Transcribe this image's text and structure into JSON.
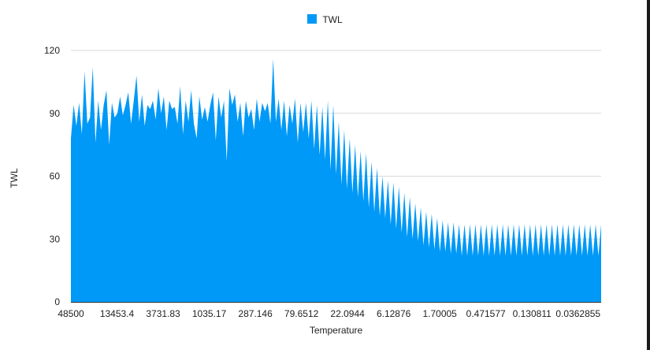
{
  "chart_data": {
    "type": "area",
    "title": "",
    "xlabel": "Temperature",
    "ylabel": "TWL",
    "ylim": [
      0,
      120
    ],
    "yticks": [
      "0",
      "30",
      "60",
      "90",
      "120"
    ],
    "xtick_labels": [
      "48500",
      "13453.4",
      "3731.83",
      "1035.17",
      "287.146",
      "79.6512",
      "22.0944",
      "6.12876",
      "1.70005",
      "0.471577",
      "0.130811",
      "0.0362855"
    ],
    "grid": true,
    "legend_position": "top-center",
    "series": [
      {
        "name": "TWL",
        "color": "#0099f7",
        "values": [
          78,
          94,
          84,
          95,
          80,
          110,
          85,
          88,
          112,
          76,
          96,
          82,
          94,
          101,
          75,
          95,
          88,
          90,
          98,
          89,
          94,
          100,
          85,
          96,
          108,
          86,
          99,
          84,
          94,
          92,
          96,
          87,
          102,
          90,
          98,
          82,
          96,
          92,
          93,
          85,
          103,
          80,
          96,
          86,
          101,
          85,
          78,
          98,
          87,
          93,
          86,
          94,
          100,
          77,
          98,
          88,
          96,
          67,
          102,
          94,
          99,
          86,
          95,
          79,
          96,
          88,
          92,
          82,
          97,
          86,
          95,
          91,
          95,
          85,
          116,
          86,
          97,
          82,
          96,
          79,
          94,
          85,
          97,
          76,
          95,
          81,
          95,
          78,
          96,
          73,
          94,
          70,
          93,
          68,
          96,
          63,
          94,
          61,
          86,
          56,
          82,
          54,
          78,
          52,
          75,
          50,
          72,
          48,
          71,
          45,
          67,
          43,
          64,
          41,
          60,
          40,
          58,
          37,
          57,
          35,
          55,
          33,
          52,
          31,
          50,
          30,
          47,
          29,
          45,
          27,
          43,
          26,
          42,
          25,
          40,
          24,
          39,
          24,
          38,
          23,
          38,
          23,
          37,
          22,
          37,
          22,
          37,
          22,
          37,
          22,
          37,
          22,
          37,
          22,
          37,
          22,
          37,
          22,
          37,
          22,
          37,
          22,
          37,
          22,
          37,
          22,
          37,
          22,
          37,
          22,
          37,
          22,
          37,
          22,
          37,
          22,
          37,
          22,
          37,
          22,
          37,
          22,
          37,
          22,
          37,
          22,
          37,
          22,
          37,
          22,
          37,
          22,
          37,
          22,
          37
        ]
      }
    ]
  }
}
